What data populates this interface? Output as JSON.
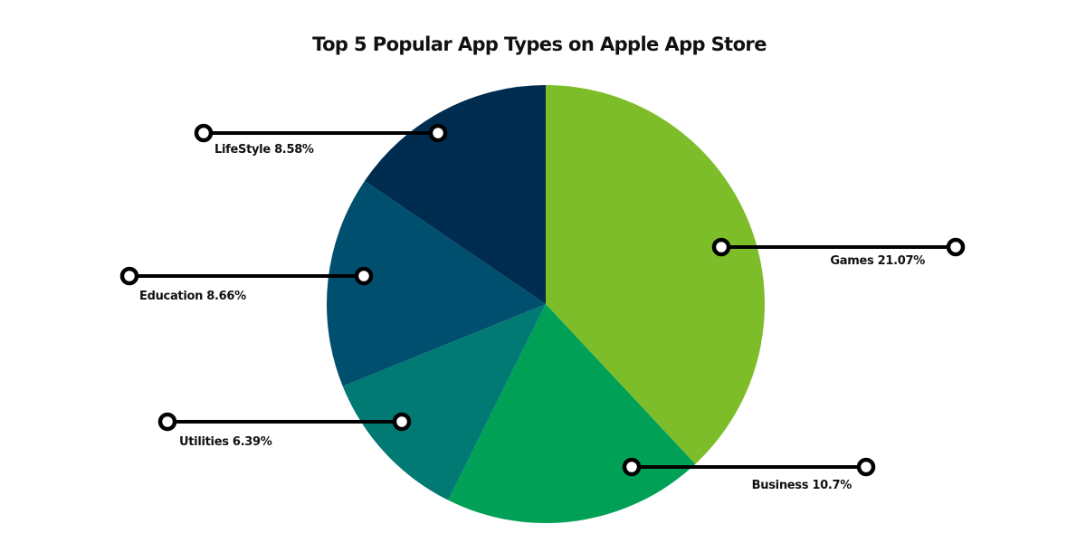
{
  "chart_data": {
    "type": "pie",
    "title": "Top 5 Popular App Types on Apple App Store",
    "slices": [
      {
        "label": "Games",
        "value": 21.07,
        "display": "Games 21.07%",
        "color": "#7dbd29"
      },
      {
        "label": "Business",
        "value": 10.7,
        "display": "Business 10.7%",
        "color": "#00a057"
      },
      {
        "label": "Utilities",
        "value": 6.39,
        "display": "Utilities 6.39%",
        "color": "#007a73"
      },
      {
        "label": "Education",
        "value": 8.66,
        "display": "Education 8.66%",
        "color": "#004f6e"
      },
      {
        "label": "LifeStyle",
        "value": 8.58,
        "display": "LifeStyle 8.58%",
        "color": "#002c4f"
      }
    ],
    "start_angle": "12 o'clock",
    "direction": "clockwise",
    "legend": "none"
  }
}
